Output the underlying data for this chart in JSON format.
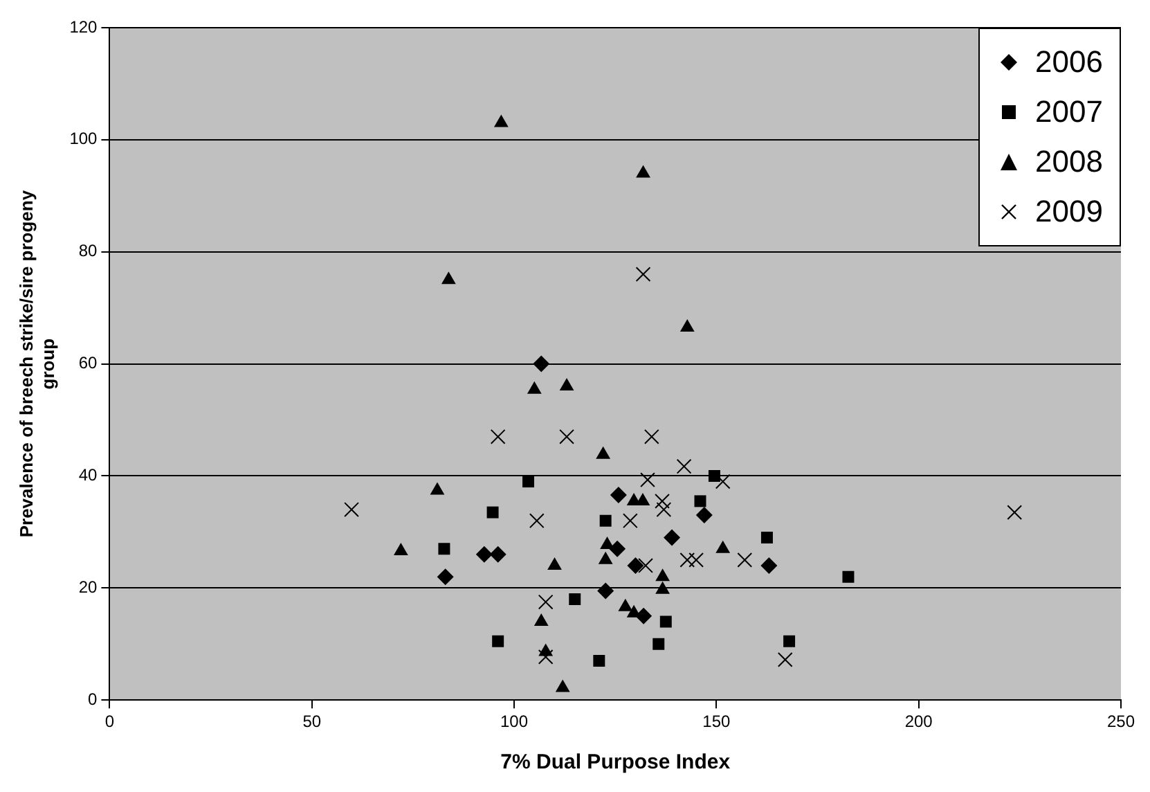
{
  "chart_data": {
    "type": "scatter",
    "xlabel": "7% Dual Purpose Index",
    "ylabel": "Prevalence of breech strike/sire progeny group",
    "xlim": [
      0,
      250
    ],
    "xticks": [
      0,
      50,
      100,
      150,
      200,
      250
    ],
    "ylim": [
      0,
      120
    ],
    "yticks": [
      0,
      20,
      40,
      60,
      80,
      100,
      120
    ],
    "grid": "y",
    "legend": "top right",
    "series": [
      {
        "name": "2006",
        "color": "#000000",
        "marker": "diamond",
        "x": [
          83,
          92.6,
          96,
          106.7,
          122.6,
          125.5,
          125.8,
          130,
          132,
          139,
          147,
          163
        ],
        "values": [
          22,
          26,
          26,
          60,
          19.5,
          27,
          36.6,
          24,
          15,
          29,
          33,
          24
        ]
      },
      {
        "name": "2007",
        "color": "#000000",
        "marker": "square",
        "x": [
          82.7,
          94.7,
          96,
          103.5,
          115,
          121,
          122.6,
          135.7,
          137.5,
          146,
          149.5,
          162.5,
          168,
          182.6
        ],
        "values": [
          27,
          33.5,
          10.5,
          39,
          18,
          7,
          32,
          10,
          14,
          35.5,
          40,
          29,
          10.5,
          22
        ]
      },
      {
        "name": "2008",
        "color": "#000000",
        "marker": "triangle",
        "x": [
          72,
          81,
          83.8,
          96.8,
          105,
          106.7,
          107.8,
          110,
          112,
          113,
          122,
          122.6,
          123,
          127.5,
          129.6,
          129.6,
          131.8,
          131.9,
          136.7,
          136.7,
          142.8,
          151.6
        ],
        "values": [
          26.6,
          37.4,
          75,
          103,
          55.4,
          14,
          8.6,
          24,
          2.2,
          56,
          43.8,
          25,
          27.7,
          16.6,
          15.5,
          35.5,
          35.5,
          94,
          22,
          19.7,
          66.5,
          27
        ]
      },
      {
        "name": "2009",
        "color": "#000000",
        "marker": "cross",
        "x": [
          59.8,
          96,
          105.6,
          107.8,
          107.8,
          113,
          128.7,
          132.5,
          131.9,
          133,
          134,
          136.6,
          137,
          142,
          142.8,
          145,
          151.6,
          157,
          167,
          223.7
        ],
        "values": [
          34,
          47,
          32,
          17.5,
          7.7,
          47,
          32,
          24,
          76,
          39.3,
          47,
          35.5,
          34,
          41.7,
          25,
          25,
          39,
          25,
          7.2,
          33.5
        ]
      }
    ]
  }
}
